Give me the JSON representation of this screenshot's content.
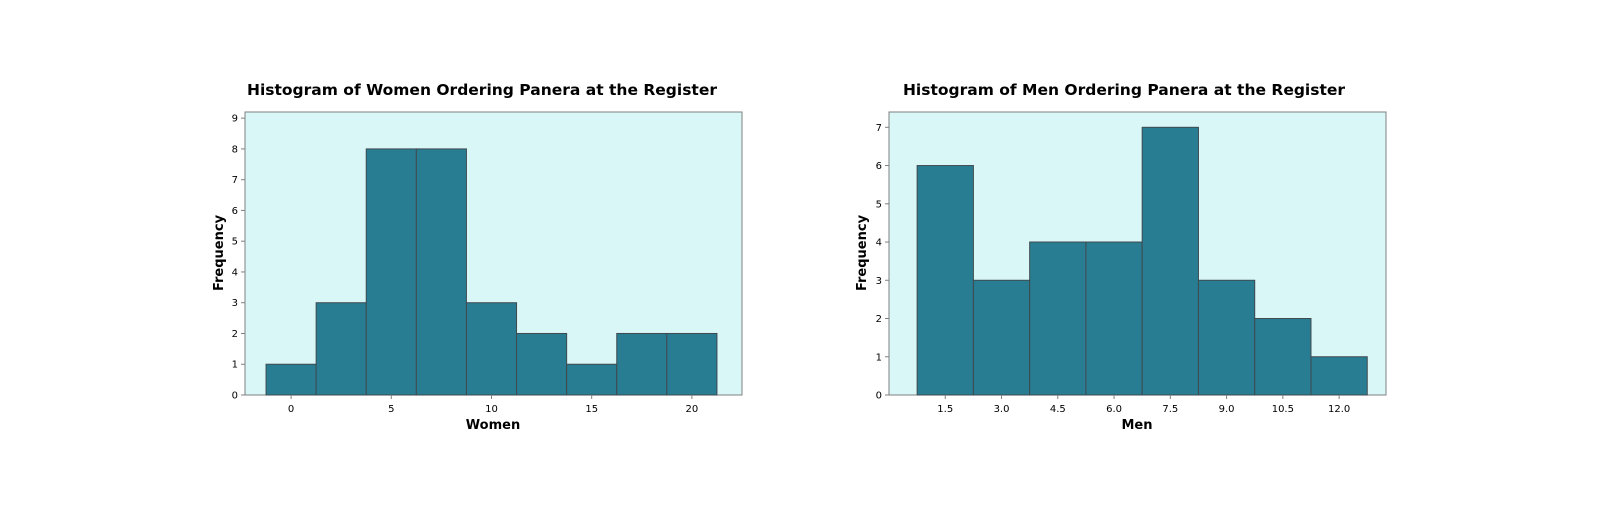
{
  "colors": {
    "plot_background": "#d9f7f7",
    "bar_fill": "#287d93",
    "bar_stroke": "#3f4a4f",
    "axis": "#7f7f7f"
  },
  "chart_data": [
    {
      "type": "bar",
      "title": "Histogram of Women Ordering Panera at the Register",
      "xlabel": "Women",
      "ylabel": "Frequency",
      "bin_width": 2.5,
      "bin_centers": [
        0,
        2.5,
        5,
        7.5,
        10,
        12.5,
        15,
        17.5,
        20
      ],
      "values": [
        1,
        3,
        8,
        8,
        3,
        2,
        1,
        2,
        2
      ],
      "x_ticks": [
        0,
        5,
        10,
        15,
        20
      ],
      "x_tick_labels": [
        "0",
        "5",
        "10",
        "15",
        "20"
      ],
      "y_ticks": [
        0,
        1,
        2,
        3,
        4,
        5,
        6,
        7,
        8,
        9
      ],
      "y_tick_labels": [
        "0",
        "1",
        "2",
        "3",
        "4",
        "5",
        "6",
        "7",
        "8",
        "9"
      ],
      "xlim": [
        -2.3,
        22.5
      ],
      "ylim": [
        0,
        9.2
      ],
      "grid": false,
      "legend": "none"
    },
    {
      "type": "bar",
      "title": "Histogram of Men Ordering Panera at the Register",
      "xlabel": "Men",
      "ylabel": "Frequency",
      "bin_width": 1.5,
      "bin_centers": [
        1.5,
        3.0,
        4.5,
        6.0,
        7.5,
        9.0,
        10.5,
        12.0
      ],
      "values": [
        6,
        3,
        4,
        4,
        7,
        3,
        2,
        1
      ],
      "x_ticks": [
        1.5,
        3.0,
        4.5,
        6.0,
        7.5,
        9.0,
        10.5,
        12.0
      ],
      "x_tick_labels": [
        "1.5",
        "3.0",
        "4.5",
        "6.0",
        "7.5",
        "9.0",
        "10.5",
        "12.0"
      ],
      "y_ticks": [
        0,
        1,
        2,
        3,
        4,
        5,
        6,
        7
      ],
      "y_tick_labels": [
        "0",
        "1",
        "2",
        "3",
        "4",
        "5",
        "6",
        "7"
      ],
      "xlim": [
        0.0,
        13.25
      ],
      "ylim": [
        0,
        7.4
      ],
      "grid": false,
      "legend": "none"
    }
  ]
}
